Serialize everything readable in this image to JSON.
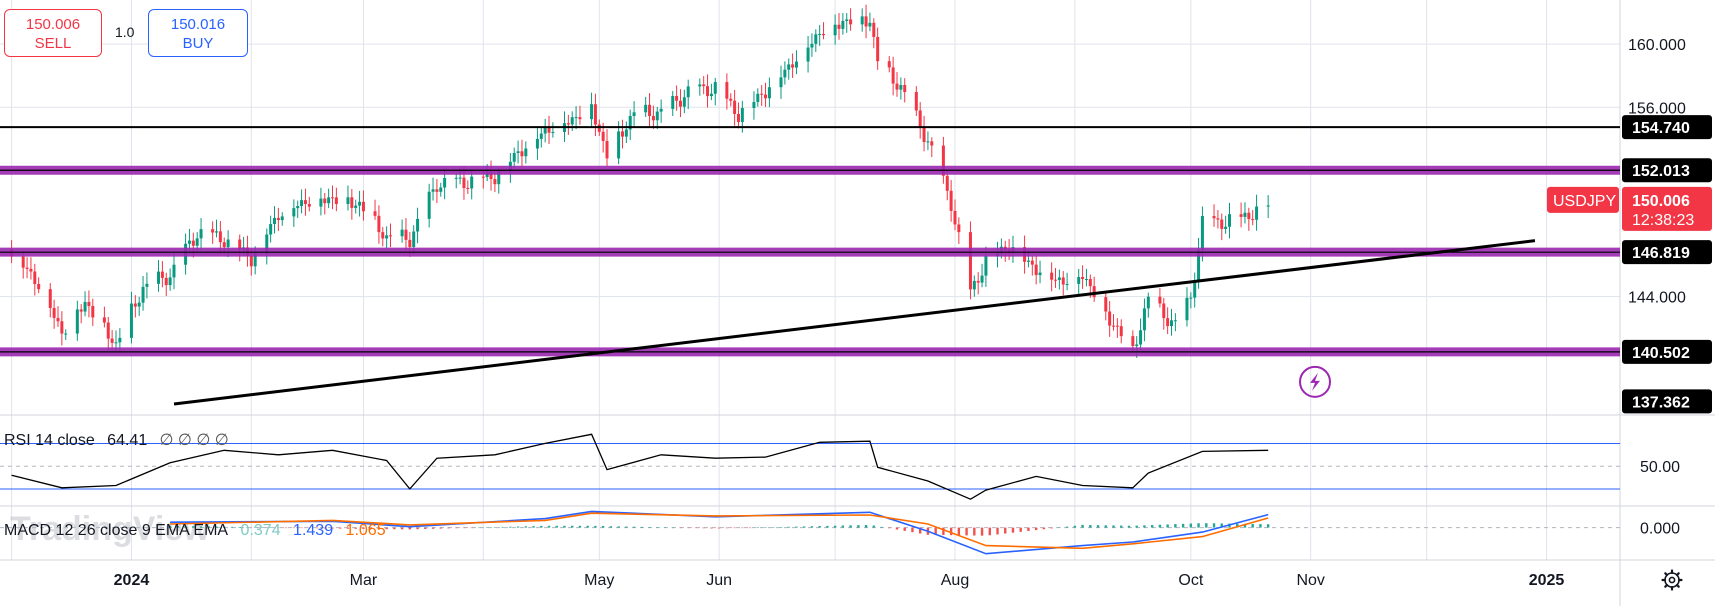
{
  "trade": {
    "sell_price": "150.006",
    "sell_label": "SELL",
    "quantity": "1.0",
    "buy_price": "150.016",
    "buy_label": "BUY"
  },
  "symbol": "USDJPY",
  "last_price": "150.006",
  "countdown": "12:38:23",
  "watermark": "TradingView",
  "colors": {
    "up": "#089981",
    "down": "#f23645",
    "level_band": "#9c27b0",
    "rsi_line": "#000000",
    "rsi_band": "#2962ff",
    "macd_line": "#2962ff",
    "signal_line": "#ff6d00",
    "hist_pos": "#26a69a",
    "hist_neg": "#ef5350"
  },
  "rsi_label": {
    "title": "RSI 14 close",
    "value": "64.41",
    "placeholders": "∅ ∅ ∅ ∅"
  },
  "macd_label": {
    "title": "MACD 12 26 close 9 EMA EMA",
    "hist": "0.374",
    "macd": "1.439",
    "signal": "1.065"
  },
  "chart_data": [
    {
      "type": "candlestick",
      "title": "",
      "instrument": "USDJPY",
      "x_axis": {
        "ticks": [
          "2024",
          "Mar",
          "May",
          "Jun",
          "Aug",
          "Oct",
          "Nov",
          "2025"
        ],
        "range": [
          "2023-11-28",
          "2025-01-20"
        ]
      },
      "y_axis": {
        "ticks": [
          160.0,
          156.0,
          144.0
        ],
        "range": [
          136.5,
          162.8
        ]
      },
      "horizontal_levels": [
        {
          "label": "154.740",
          "value": 154.74,
          "style": "black-line"
        },
        {
          "label": "152.013",
          "value": 152.013,
          "style": "purple-band"
        },
        {
          "label": "146.819",
          "value": 146.819,
          "style": "purple-band"
        },
        {
          "label": "140.502",
          "value": 140.502,
          "style": "purple-band"
        },
        {
          "label": "137.362",
          "value": 137.362,
          "style": "axis-label"
        }
      ],
      "trend_line": {
        "start": [
          "2024-01-12",
          137.2
        ],
        "end": [
          "2024-12-29",
          147.55
        ]
      },
      "close_series": [
        [
          "2023-12-01",
          146.8
        ],
        [
          "2023-12-08",
          144.9
        ],
        [
          "2023-12-14",
          141.8
        ],
        [
          "2023-12-20",
          143.7
        ],
        [
          "2023-12-28",
          141.0
        ],
        [
          "2024-01-04",
          144.6
        ],
        [
          "2024-01-11",
          145.4
        ],
        [
          "2024-01-18",
          148.1
        ],
        [
          "2024-01-25",
          147.7
        ],
        [
          "2024-02-01",
          146.5
        ],
        [
          "2024-02-08",
          149.3
        ],
        [
          "2024-02-15",
          150.1
        ],
        [
          "2024-02-22",
          150.3
        ],
        [
          "2024-02-29",
          149.9
        ],
        [
          "2024-03-07",
          147.8
        ],
        [
          "2024-03-13",
          147.7
        ],
        [
          "2024-03-20",
          151.2
        ],
        [
          "2024-03-27",
          151.3
        ],
        [
          "2024-04-04",
          151.7
        ],
        [
          "2024-04-10",
          153.2
        ],
        [
          "2024-04-17",
          154.6
        ],
        [
          "2024-04-24",
          155.3
        ],
        [
          "2024-04-29",
          156.1
        ],
        [
          "2024-05-03",
          153.0
        ],
        [
          "2024-05-10",
          155.7
        ],
        [
          "2024-05-17",
          155.7
        ],
        [
          "2024-05-24",
          157.0
        ],
        [
          "2024-05-31",
          157.3
        ],
        [
          "2024-06-06",
          155.6
        ],
        [
          "2024-06-13",
          157.1
        ],
        [
          "2024-06-20",
          158.9
        ],
        [
          "2024-06-27",
          160.8
        ],
        [
          "2024-07-03",
          161.5
        ],
        [
          "2024-07-10",
          161.6
        ],
        [
          "2024-07-12",
          159.0
        ],
        [
          "2024-07-18",
          157.3
        ],
        [
          "2024-07-25",
          153.9
        ],
        [
          "2024-07-31",
          150.0
        ],
        [
          "2024-08-05",
          144.3
        ],
        [
          "2024-08-09",
          146.3
        ],
        [
          "2024-08-15",
          147.3
        ],
        [
          "2024-08-22",
          145.8
        ],
        [
          "2024-08-29",
          145.0
        ],
        [
          "2024-09-03",
          145.5
        ],
        [
          "2024-09-09",
          143.0
        ],
        [
          "2024-09-16",
          140.6
        ],
        [
          "2024-09-20",
          143.9
        ],
        [
          "2024-09-27",
          142.2
        ],
        [
          "2024-10-01",
          144.0
        ],
        [
          "2024-10-04",
          148.7
        ],
        [
          "2024-10-10",
          148.8
        ],
        [
          "2024-10-16",
          149.2
        ],
        [
          "2024-10-21",
          150.0
        ]
      ]
    },
    {
      "type": "line",
      "title": "RSI 14 close",
      "y_axis": {
        "ticks": [
          50.0
        ],
        "range": [
          15,
          95
        ],
        "bands": [
          70,
          30
        ]
      },
      "series": [
        {
          "name": "RSI",
          "points": [
            [
              "2023-12-01",
              42
            ],
            [
              "2023-12-14",
              31
            ],
            [
              "2023-12-28",
              33
            ],
            [
              "2024-01-11",
              53
            ],
            [
              "2024-01-25",
              64
            ],
            [
              "2024-02-08",
              60
            ],
            [
              "2024-02-22",
              64
            ],
            [
              "2024-03-07",
              55
            ],
            [
              "2024-03-13",
              30
            ],
            [
              "2024-03-20",
              57
            ],
            [
              "2024-04-04",
              60
            ],
            [
              "2024-04-17",
              70
            ],
            [
              "2024-04-29",
              78
            ],
            [
              "2024-05-03",
              47
            ],
            [
              "2024-05-17",
              60
            ],
            [
              "2024-05-31",
              57
            ],
            [
              "2024-06-13",
              58
            ],
            [
              "2024-06-27",
              71
            ],
            [
              "2024-07-10",
              72
            ],
            [
              "2024-07-12",
              49
            ],
            [
              "2024-07-25",
              37
            ],
            [
              "2024-08-05",
              21
            ],
            [
              "2024-08-09",
              29
            ],
            [
              "2024-08-22",
              41
            ],
            [
              "2024-09-03",
              33
            ],
            [
              "2024-09-16",
              31
            ],
            [
              "2024-09-20",
              44
            ],
            [
              "2024-10-04",
              63
            ],
            [
              "2024-10-21",
              64
            ]
          ]
        }
      ]
    },
    {
      "type": "line",
      "title": "MACD 12 26 close 9 EMA EMA",
      "y_axis": {
        "ticks": [
          0.0
        ],
        "range": [
          -3.6,
          2.4
        ]
      },
      "series": [
        {
          "name": "MACD",
          "points": [
            [
              "2024-01-11",
              0.6
            ],
            [
              "2024-02-22",
              0.7
            ],
            [
              "2024-03-13",
              0.1
            ],
            [
              "2024-04-17",
              1.0
            ],
            [
              "2024-04-29",
              1.8
            ],
            [
              "2024-05-31",
              1.2
            ],
            [
              "2024-07-10",
              1.7
            ],
            [
              "2024-07-25",
              -0.4
            ],
            [
              "2024-08-09",
              -2.9
            ],
            [
              "2024-09-03",
              -2.0
            ],
            [
              "2024-09-16",
              -1.6
            ],
            [
              "2024-10-04",
              -0.5
            ],
            [
              "2024-10-21",
              1.439
            ]
          ]
        },
        {
          "name": "Signal",
          "points": [
            [
              "2024-01-11",
              0.4
            ],
            [
              "2024-02-22",
              0.8
            ],
            [
              "2024-03-13",
              0.3
            ],
            [
              "2024-04-17",
              0.8
            ],
            [
              "2024-04-29",
              1.6
            ],
            [
              "2024-05-31",
              1.3
            ],
            [
              "2024-07-10",
              1.4
            ],
            [
              "2024-07-25",
              0.4
            ],
            [
              "2024-08-09",
              -2.0
            ],
            [
              "2024-09-03",
              -2.3
            ],
            [
              "2024-09-16",
              -1.8
            ],
            [
              "2024-10-04",
              -1.0
            ],
            [
              "2024-10-21",
              1.065
            ]
          ]
        }
      ]
    }
  ]
}
